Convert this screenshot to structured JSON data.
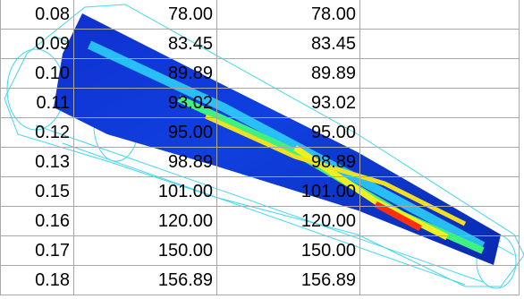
{
  "table": {
    "rows": [
      [
        "0.08",
        "78.00",
        "78.00"
      ],
      [
        "0.09",
        "83.45",
        "83.45"
      ],
      [
        "0.10",
        "89.89",
        "89.89"
      ],
      [
        "0.11",
        "93.02",
        "93.02"
      ],
      [
        "0.12",
        "95.00",
        "95.00"
      ],
      [
        "0.13",
        "98.89",
        "98.89"
      ],
      [
        "0.15",
        "101.00",
        "101.00"
      ],
      [
        "0.16",
        "120.00",
        "120.00"
      ],
      [
        "0.17",
        "150.00",
        "150.00"
      ],
      [
        "0.18",
        "156.89",
        "156.89"
      ]
    ]
  }
}
